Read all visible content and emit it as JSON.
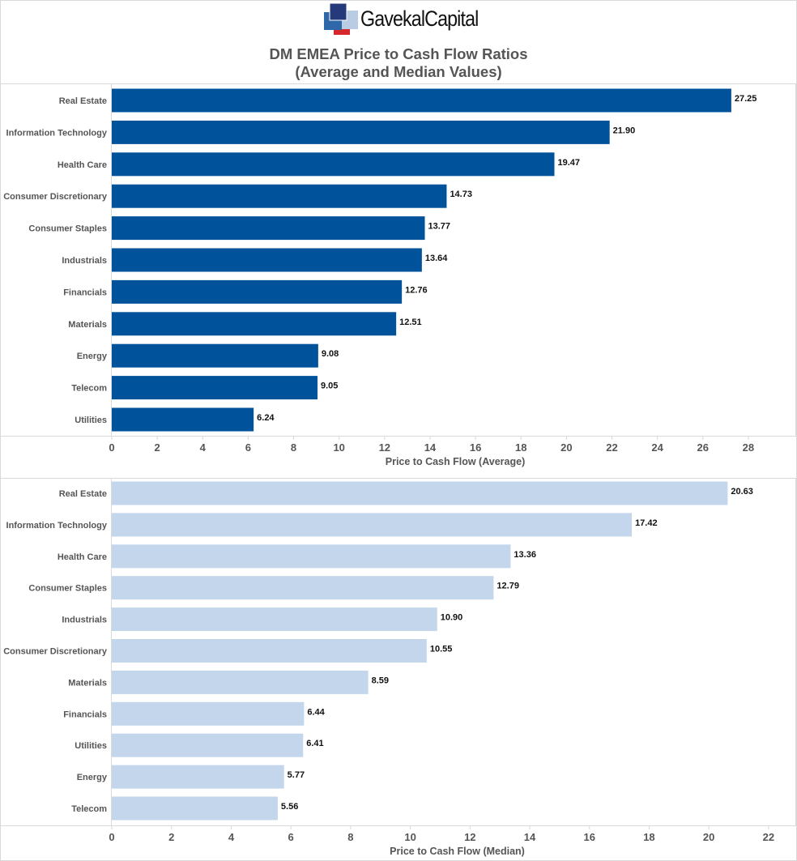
{
  "header": {
    "logo_text": "GavekalCapital",
    "title_line1": "DM EMEA Price to Cash Flow Ratios",
    "title_line2": "(Average and Median Values)"
  },
  "colors": {
    "average_bar": "#00529b",
    "median_bar": "#c3d6eb",
    "logo_dark": "#243a7a",
    "logo_mid": "#2f68a8",
    "logo_light": "#b9cce4",
    "logo_red": "#d7262c"
  },
  "chart_data": [
    {
      "type": "bar",
      "orientation": "horizontal",
      "title": "DM EMEA Price to Cash Flow Ratios (Average and Median Values)",
      "xlabel": "Price to Cash Flow (Average)",
      "ylabel": "",
      "xlim": [
        0,
        29.5
      ],
      "xticks": [
        0,
        2,
        4,
        6,
        8,
        10,
        12,
        14,
        16,
        18,
        20,
        22,
        24,
        26,
        28
      ],
      "grid": false,
      "categories": [
        "Real Estate",
        "Information Technology",
        "Health Care",
        "Consumer Discretionary",
        "Consumer Staples",
        "Industrials",
        "Financials",
        "Materials",
        "Energy",
        "Telecom",
        "Utilities"
      ],
      "values": [
        27.25,
        21.9,
        19.47,
        14.73,
        13.77,
        13.64,
        12.76,
        12.51,
        9.08,
        9.05,
        6.24
      ],
      "value_labels": [
        "27.25",
        "21.90",
        "19.47",
        "14.73",
        "13.77",
        "13.64",
        "12.76",
        "12.51",
        "9.08",
        "9.05",
        "6.24"
      ]
    },
    {
      "type": "bar",
      "orientation": "horizontal",
      "xlabel": "Price to Cash Flow (Median)",
      "ylabel": "",
      "xlim": [
        0,
        22.6
      ],
      "xticks": [
        0,
        2,
        4,
        6,
        8,
        10,
        12,
        14,
        16,
        18,
        20,
        22
      ],
      "grid": false,
      "categories": [
        "Real Estate",
        "Information Technology",
        "Health Care",
        "Consumer Staples",
        "Industrials",
        "Consumer Discretionary",
        "Materials",
        "Financials",
        "Utilities",
        "Energy",
        "Telecom"
      ],
      "values": [
        20.63,
        17.42,
        13.36,
        12.79,
        10.9,
        10.55,
        8.59,
        6.44,
        6.41,
        5.77,
        5.56
      ],
      "value_labels": [
        "20.63",
        "17.42",
        "13.36",
        "12.79",
        "10.90",
        "10.55",
        "8.59",
        "6.44",
        "6.41",
        "5.77",
        "5.56"
      ]
    }
  ]
}
